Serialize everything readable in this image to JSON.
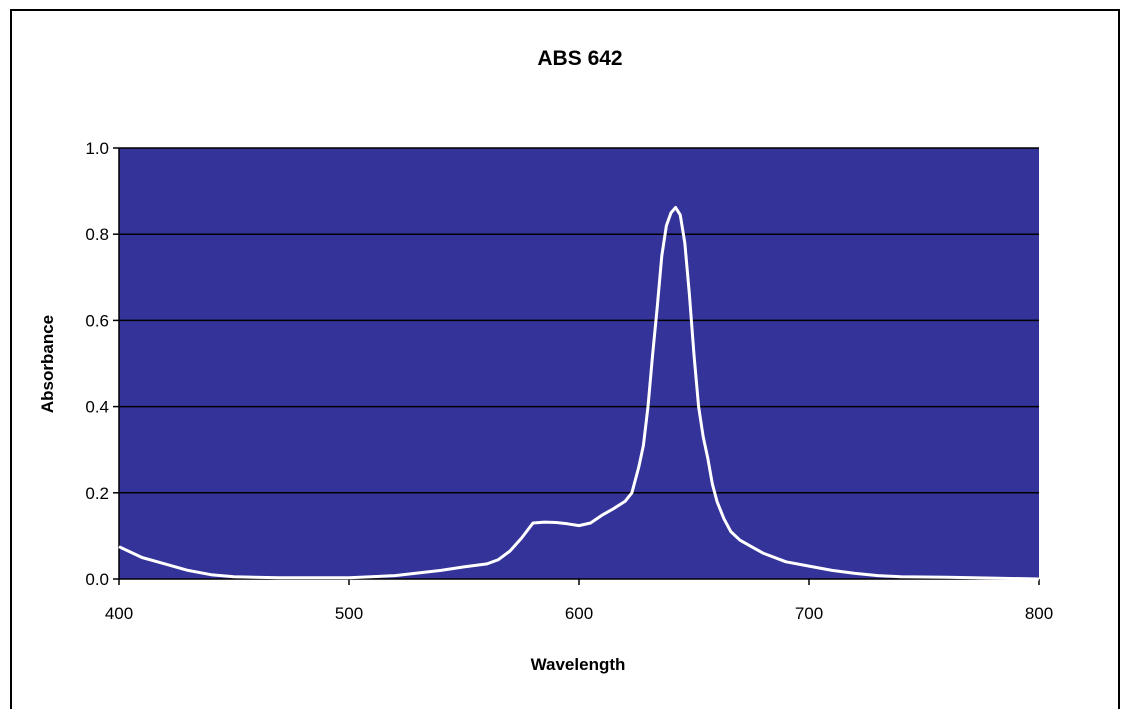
{
  "chart_data": {
    "type": "line",
    "title": "ABS 642",
    "xlabel": "Wavelength",
    "ylabel": "Absorbance",
    "xlim": [
      400,
      800
    ],
    "ylim": [
      0,
      1.0
    ],
    "x_ticks": [
      "400",
      "500",
      "600",
      "700",
      "800"
    ],
    "y_ticks": [
      "0.0",
      "0.2",
      "0.4",
      "0.6",
      "0.8",
      "1.0"
    ],
    "grid": true,
    "colors": {
      "plot_background": "#333399",
      "line": "#ffffff",
      "gridline": "#000000"
    },
    "series": [
      {
        "x": [
          400,
          410,
          420,
          430,
          440,
          450,
          470,
          500,
          520,
          540,
          550,
          560,
          565,
          570,
          575,
          580,
          585,
          590,
          595,
          600,
          605,
          610,
          615,
          620,
          623,
          626,
          628,
          630,
          632,
          634,
          636,
          638,
          640,
          642,
          644,
          646,
          648,
          650,
          652,
          654,
          656,
          658,
          660,
          663,
          666,
          670,
          675,
          680,
          690,
          700,
          710,
          720,
          730,
          740,
          760,
          780,
          800
        ],
        "y": [
          0.075,
          0.05,
          0.035,
          0.02,
          0.01,
          0.005,
          0.003,
          0.003,
          0.008,
          0.02,
          0.028,
          0.035,
          0.045,
          0.065,
          0.095,
          0.13,
          0.132,
          0.131,
          0.128,
          0.124,
          0.13,
          0.148,
          0.163,
          0.18,
          0.2,
          0.26,
          0.31,
          0.4,
          0.52,
          0.63,
          0.75,
          0.82,
          0.85,
          0.862,
          0.845,
          0.78,
          0.66,
          0.52,
          0.4,
          0.33,
          0.28,
          0.22,
          0.18,
          0.14,
          0.11,
          0.09,
          0.075,
          0.06,
          0.04,
          0.03,
          0.02,
          0.013,
          0.008,
          0.005,
          0.004,
          0.002,
          0.0
        ]
      }
    ]
  }
}
